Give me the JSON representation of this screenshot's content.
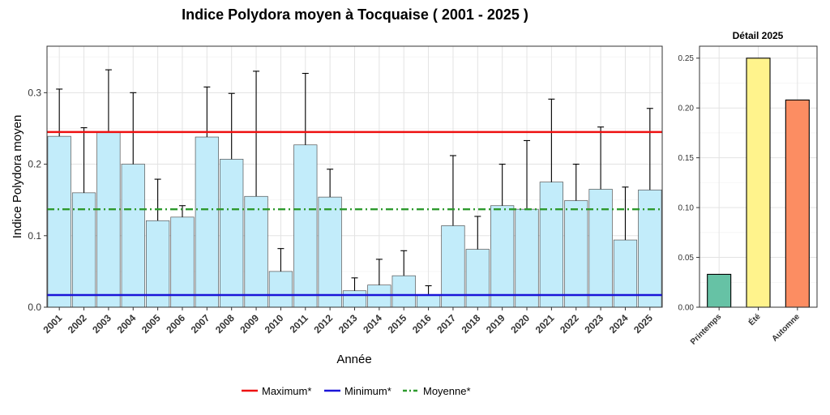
{
  "chart_data": [
    {
      "type": "bar",
      "title": "Indice Polydora moyen à Tocquaise ( 2001 - 2025 )",
      "xlabel": "Année",
      "ylabel": "Indice Polydora moyen",
      "ylim": [
        0,
        0.365
      ],
      "yticks": [
        "0.0",
        "0.1",
        "0.2",
        "0.3"
      ],
      "grid": true,
      "categories": [
        "2001",
        "2002",
        "2003",
        "2004",
        "2005",
        "2006",
        "2007",
        "2008",
        "2009",
        "2010",
        "2011",
        "2012",
        "2013",
        "2014",
        "2015",
        "2016",
        "2017",
        "2018",
        "2019",
        "2020",
        "2021",
        "2022",
        "2023",
        "2024",
        "2025"
      ],
      "values": [
        0.239,
        0.16,
        0.245,
        0.2,
        0.121,
        0.126,
        0.238,
        0.207,
        0.155,
        0.05,
        0.227,
        0.154,
        0.023,
        0.031,
        0.044,
        0.017,
        0.114,
        0.081,
        0.142,
        0.137,
        0.175,
        0.149,
        0.165,
        0.094,
        0.164
      ],
      "error_upper": [
        0.305,
        0.251,
        0.332,
        0.3,
        0.179,
        0.142,
        0.308,
        0.299,
        0.33,
        0.082,
        0.327,
        0.193,
        0.041,
        0.067,
        0.079,
        0.03,
        0.212,
        0.127,
        0.2,
        0.233,
        0.291,
        0.2,
        0.252,
        0.168,
        0.278
      ],
      "bar_color": "#c2ecfa",
      "lines": [
        {
          "name": "Maximum*",
          "value": 0.245,
          "color": "#ee1111",
          "style": "solid"
        },
        {
          "name": "Minimum*",
          "value": 0.017,
          "color": "#1a14d8",
          "style": "solid"
        },
        {
          "name": "Moyenne*",
          "value": 0.137,
          "color": "#2e9a2e",
          "style": "dotdash"
        }
      ],
      "legend_position": "bottom"
    },
    {
      "type": "bar",
      "title": "Détail 2025",
      "xlabel": "",
      "ylabel": "",
      "ylim": [
        0,
        0.262
      ],
      "yticks": [
        "0.00",
        "0.05",
        "0.10",
        "0.15",
        "0.20",
        "0.25"
      ],
      "grid": true,
      "categories": [
        "Printemps",
        "Été",
        "Automne"
      ],
      "values": [
        0.033,
        0.25,
        0.208
      ],
      "colors": [
        "#66c2a5",
        "#fff38c",
        "#fc8d62"
      ]
    }
  ]
}
